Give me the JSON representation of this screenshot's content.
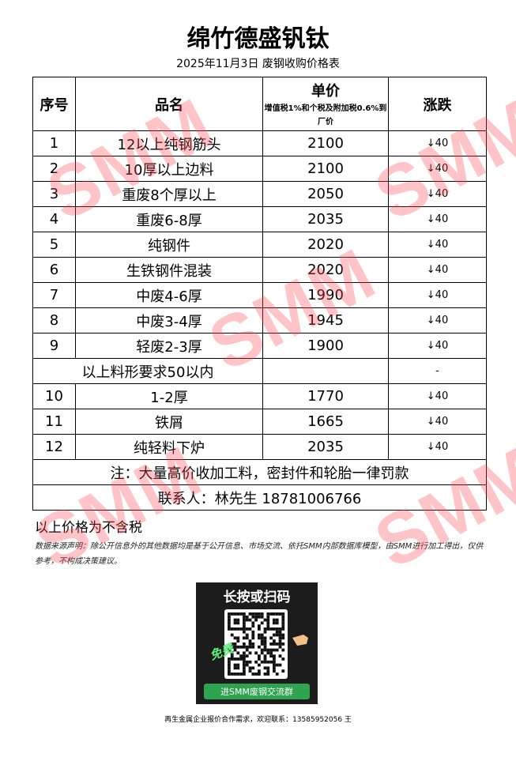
{
  "header": {
    "title": "绵竹德盛钒钛",
    "subtitle": "2025年11月3日 废钢收购价格表"
  },
  "table": {
    "headers": [
      "序号",
      "品名",
      "单价",
      "涨跌"
    ],
    "price_note": "增值税1%和个税及附加税0.6%到厂价",
    "rows": [
      [
        1,
        "12以上纯钢筋头",
        2100,
        "↓40"
      ],
      [
        2,
        "10厚以上边料",
        2100,
        "↓40"
      ],
      [
        3,
        "重废8个厚以上",
        2050,
        "↓40"
      ],
      [
        4,
        "重废6-8厚",
        2035,
        "↓40"
      ],
      [
        5,
        "纯钢件",
        2020,
        "↓40"
      ],
      [
        6,
        "生铁钢件混装",
        2020,
        "↓40"
      ],
      [
        7,
        "中废4-6厚",
        1990,
        "↓40"
      ],
      [
        8,
        "中废3-4厚",
        1945,
        "↓40"
      ],
      [
        9,
        "轻废2-3厚",
        1900,
        "↓40"
      ],
      [
        "以上料形要求50以内",
        "-"
      ],
      [
        10,
        "1-2厚",
        1770,
        "↓40"
      ],
      [
        11,
        "铁屑",
        1665,
        "↓40"
      ],
      [
        12,
        "纯轻料下炉",
        2035,
        "↓40"
      ]
    ],
    "note": "注：大量高价收加工料，密封件和轮胎一律罚款",
    "contact": "联系人：林先生 18781006766"
  },
  "footer": {
    "tax_note": "以上价格为不含税",
    "disclaimer": "数据来源声明：除公开信息外的其他数据均是基于公开信息、市场交流、依托SMM内部数据库模型，由SMM进行加工得出，仅供参考，不构成决策建议。",
    "qr_title": "长按或扫码",
    "qr_badge": "免费",
    "qr_caption": "进SMM废钢交流群",
    "contact_line": "再生金属企业报价合作需求，欢迎联系：13585952056 王"
  },
  "watermark": "SMM"
}
